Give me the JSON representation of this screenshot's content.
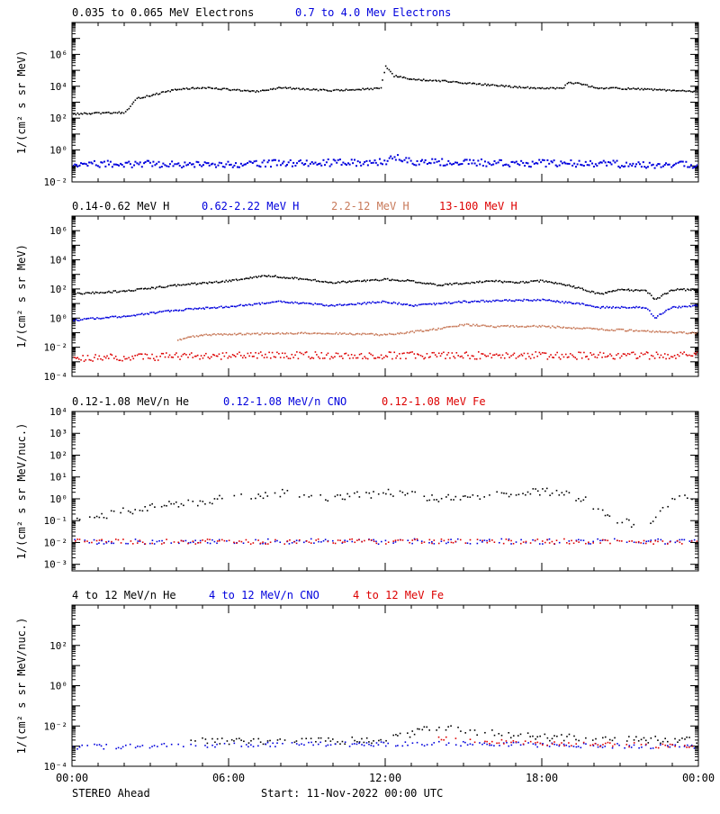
{
  "figure": {
    "spacecraft_label": "STEREO Ahead",
    "start_label": "Start: 11-Nov-2022 00:00 UTC",
    "x_ticks": [
      "00:00",
      "06:00",
      "12:00",
      "18:00",
      "00:00"
    ]
  },
  "chart_data": [
    {
      "type": "scatter",
      "ylabel": "1/(cm² s sr MeV)",
      "ylog": true,
      "ylim": [
        0.001,
        10000000
      ],
      "y_tick_labels": [
        "10⁻²",
        "10⁰",
        "10²",
        "10⁴",
        "10⁶"
      ],
      "xlim": [
        0,
        24
      ],
      "series": [
        {
          "name": "0.035 to 0.065 MeV Electrons",
          "color": "#000000",
          "anchors": [
            [
              0,
              20
            ],
            [
              2.0,
              25
            ],
            [
              2.5,
              200
            ],
            [
              3.0,
              300
            ],
            [
              4.0,
              700
            ],
            [
              5.0,
              900
            ],
            [
              6.0,
              700
            ],
            [
              7.0,
              500
            ],
            [
              8.0,
              900
            ],
            [
              9.0,
              700
            ],
            [
              10.0,
              600
            ],
            [
              11.0,
              700
            ],
            [
              11.8,
              800
            ],
            [
              12.0,
              20000
            ],
            [
              12.3,
              5000
            ],
            [
              13.0,
              3000
            ],
            [
              14.0,
              2500
            ],
            [
              15.0,
              1800
            ],
            [
              16.0,
              1300
            ],
            [
              17.0,
              1000
            ],
            [
              18.0,
              800
            ],
            [
              18.8,
              900
            ],
            [
              19.0,
              2000
            ],
            [
              19.5,
              1500
            ],
            [
              20.0,
              900
            ],
            [
              21.0,
              800
            ],
            [
              22.0,
              700
            ],
            [
              24.0,
              500
            ]
          ]
        },
        {
          "name": "0.7 to 4.0 Mev Electrons",
          "color": "#0000dd",
          "anchors": [
            [
              0,
              0.015
            ],
            [
              6,
              0.015
            ],
            [
              12,
              0.02
            ],
            [
              12.3,
              0.04
            ],
            [
              13,
              0.02
            ],
            [
              24,
              0.013
            ]
          ]
        }
      ]
    },
    {
      "type": "scatter",
      "ylabel": "1/(cm² s sr MeV)",
      "ylog": true,
      "ylim": [
        1e-05,
        1000000
      ],
      "y_tick_labels": [
        "10⁻⁴",
        "10⁻²",
        "10⁰",
        "10²",
        "10⁴",
        "10⁶"
      ],
      "xlim": [
        0,
        24
      ],
      "series": [
        {
          "name": "0.14-0.62 MeV H",
          "color": "#000000",
          "anchors": [
            [
              0,
              5
            ],
            [
              2,
              8
            ],
            [
              4,
              20
            ],
            [
              6,
              40
            ],
            [
              7.5,
              90
            ],
            [
              9,
              50
            ],
            [
              10,
              30
            ],
            [
              11,
              40
            ],
            [
              12,
              50
            ],
            [
              13,
              40
            ],
            [
              14,
              20
            ],
            [
              16,
              40
            ],
            [
              17,
              30
            ],
            [
              18,
              40
            ],
            [
              19,
              20
            ],
            [
              20.2,
              5
            ],
            [
              21,
              10
            ],
            [
              22,
              8
            ],
            [
              22.3,
              2
            ],
            [
              23,
              10
            ],
            [
              24,
              10
            ]
          ]
        },
        {
          "name": "0.62-2.22 MeV H",
          "color": "#0000dd",
          "anchors": [
            [
              0,
              0.08
            ],
            [
              2,
              0.15
            ],
            [
              4,
              0.4
            ],
            [
              6,
              0.7
            ],
            [
              8,
              1.5
            ],
            [
              10,
              0.8
            ],
            [
              12,
              1.5
            ],
            [
              13,
              0.8
            ],
            [
              15,
              1.5
            ],
            [
              18,
              2
            ],
            [
              19.5,
              1.0
            ],
            [
              20.2,
              0.6
            ],
            [
              22,
              0.6
            ],
            [
              22.3,
              0.1
            ],
            [
              22.5,
              0.2
            ],
            [
              23,
              0.6
            ],
            [
              24,
              0.8
            ]
          ]
        },
        {
          "name": "2.2-12 MeV H",
          "color": "#c87a5a",
          "anchors": [
            [
              4.0,
              0.003
            ],
            [
              4.3,
              0.005
            ],
            [
              5,
              0.008
            ],
            [
              8,
              0.01
            ],
            [
              10,
              0.01
            ],
            [
              12,
              0.008
            ],
            [
              14,
              0.02
            ],
            [
              15,
              0.04
            ],
            [
              16,
              0.03
            ],
            [
              18,
              0.03
            ],
            [
              20,
              0.02
            ],
            [
              24,
              0.01
            ]
          ]
        },
        {
          "name": "13-100 MeV H",
          "color": "#dd0000",
          "anchors": [
            [
              0,
              0.0002
            ],
            [
              6,
              0.0003
            ],
            [
              12,
              0.0003
            ],
            [
              18,
              0.0003
            ],
            [
              24,
              0.0003
            ]
          ]
        }
      ]
    },
    {
      "type": "scatter",
      "ylabel": "1/(cm² s sr MeV/nuc.)",
      "ylog": true,
      "ylim": [
        0.0005,
        10000
      ],
      "y_tick_labels": [
        "10⁻³",
        "10⁻²",
        "10⁻¹",
        "10⁰",
        "10¹",
        "10²",
        "10³",
        "10⁴"
      ],
      "xlim": [
        0,
        24
      ],
      "series": [
        {
          "name": "0.12-1.08 MeV/n He",
          "color": "#000000",
          "anchors": [
            [
              0,
              0.1
            ],
            [
              2,
              0.3
            ],
            [
              4,
              0.6
            ],
            [
              6,
              1.2
            ],
            [
              8,
              2
            ],
            [
              10,
              1.2
            ],
            [
              12,
              2
            ],
            [
              14,
              1.2
            ],
            [
              16,
              1.5
            ],
            [
              18,
              2.5
            ],
            [
              19.5,
              1.2
            ],
            [
              20.2,
              0.3
            ],
            [
              21,
              0.1
            ],
            [
              22,
              0.05
            ],
            [
              23,
              1.0
            ],
            [
              24,
              1.5
            ]
          ]
        },
        {
          "name": "0.12-1.08 MeV/n CNO",
          "color": "#0000dd",
          "anchors": [
            [
              0,
              0.012
            ],
            [
              24,
              0.012
            ]
          ]
        },
        {
          "name": "0.12-1.08 MeV Fe",
          "color": "#dd0000",
          "anchors": [
            [
              0,
              0.012
            ],
            [
              24,
              0.012
            ]
          ]
        }
      ]
    },
    {
      "type": "scatter",
      "ylabel": "1/(cm² s sr MeV/nuc.)",
      "ylog": true,
      "ylim": [
        1e-05,
        1000
      ],
      "y_tick_labels": [
        "10⁻⁴",
        "10⁻²",
        "10⁰",
        "10²"
      ],
      "xlim": [
        0,
        24
      ],
      "series": [
        {
          "name": "4 to 12 MeV/n He",
          "color": "#000000",
          "anchors": [
            [
              4.5,
              0.0002
            ],
            [
              12,
              0.0002
            ],
            [
              14,
              0.001
            ],
            [
              15,
              0.0006
            ],
            [
              18,
              0.0003
            ],
            [
              24,
              0.0002
            ]
          ]
        },
        {
          "name": "4 to 12 MeV/n CNO",
          "color": "#0000dd",
          "anchors": [
            [
              0,
              0.0001
            ],
            [
              14,
              0.00015
            ],
            [
              24,
              0.0001
            ]
          ]
        },
        {
          "name": "4 to 12 MeV Fe",
          "color": "#dd0000",
          "anchors": [
            [
              14,
              0.0003
            ],
            [
              15,
              0.0002
            ],
            [
              24,
              0.0001
            ]
          ]
        }
      ]
    }
  ]
}
